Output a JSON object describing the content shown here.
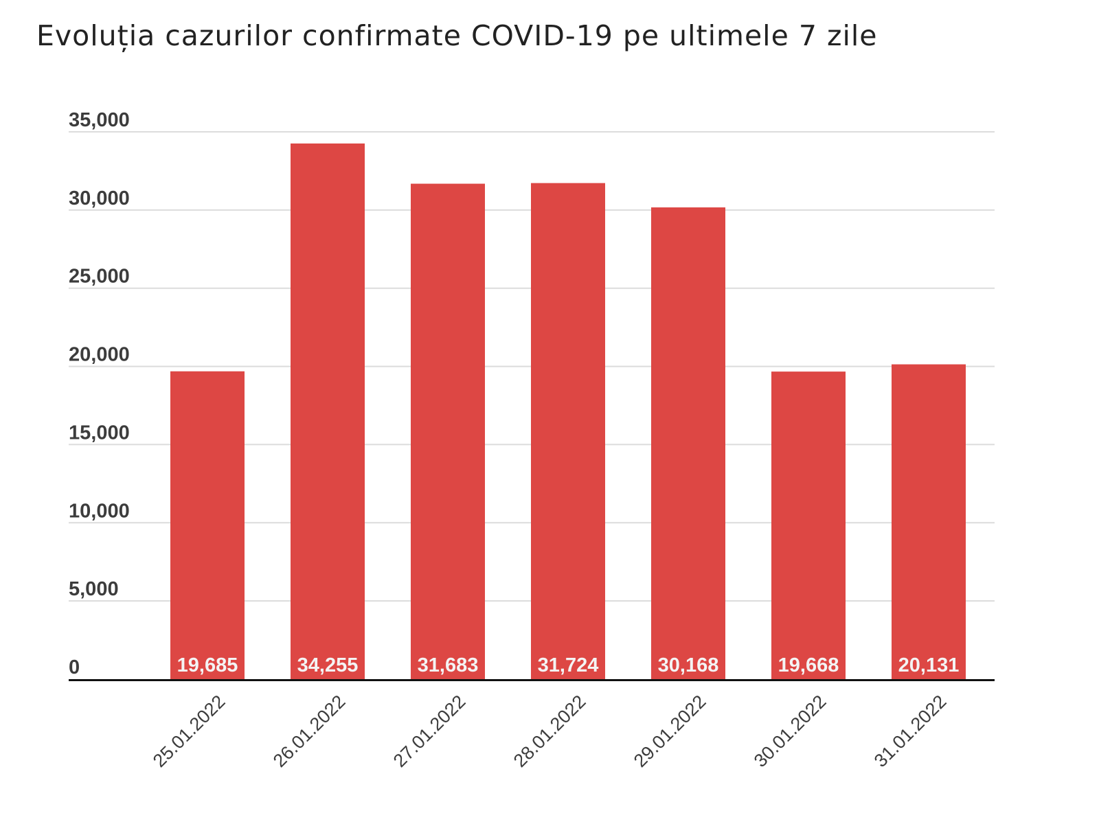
{
  "chart_data": {
    "type": "bar",
    "title": "Evoluția cazurilor confirmate COVID-19 pe ultimele 7 zile",
    "categories": [
      "25.01.2022",
      "26.01.2022",
      "27.01.2022",
      "28.01.2022",
      "29.01.2022",
      "30.01.2022",
      "31.01.2022"
    ],
    "series": [
      {
        "values": [
          19685,
          34255,
          31683,
          31724,
          30168,
          19668,
          20131
        ],
        "data_labels": [
          "19,685",
          "34,255",
          "31,683",
          "31,724",
          "30,168",
          "19,668",
          "20,131"
        ],
        "color": "#dd4744"
      }
    ],
    "ylim": [
      0,
      35000
    ],
    "yticks": [
      0,
      5000,
      10000,
      15000,
      20000,
      25000,
      30000,
      35000
    ],
    "ytick_labels": [
      "0",
      "5,000",
      "10,000",
      "15,000",
      "20,000",
      "25,000",
      "30,000",
      "35,000"
    ],
    "xlabel": "",
    "ylabel": "",
    "grid": true,
    "legend": "none",
    "data_label_position": "inside-base",
    "colors": {
      "bar": "#dd4744",
      "grid": "#dcdcdc",
      "baseline": "#111111",
      "data_label": "#f4f4f4",
      "title": "#222222",
      "tick_label": "#3c3c3c"
    }
  }
}
